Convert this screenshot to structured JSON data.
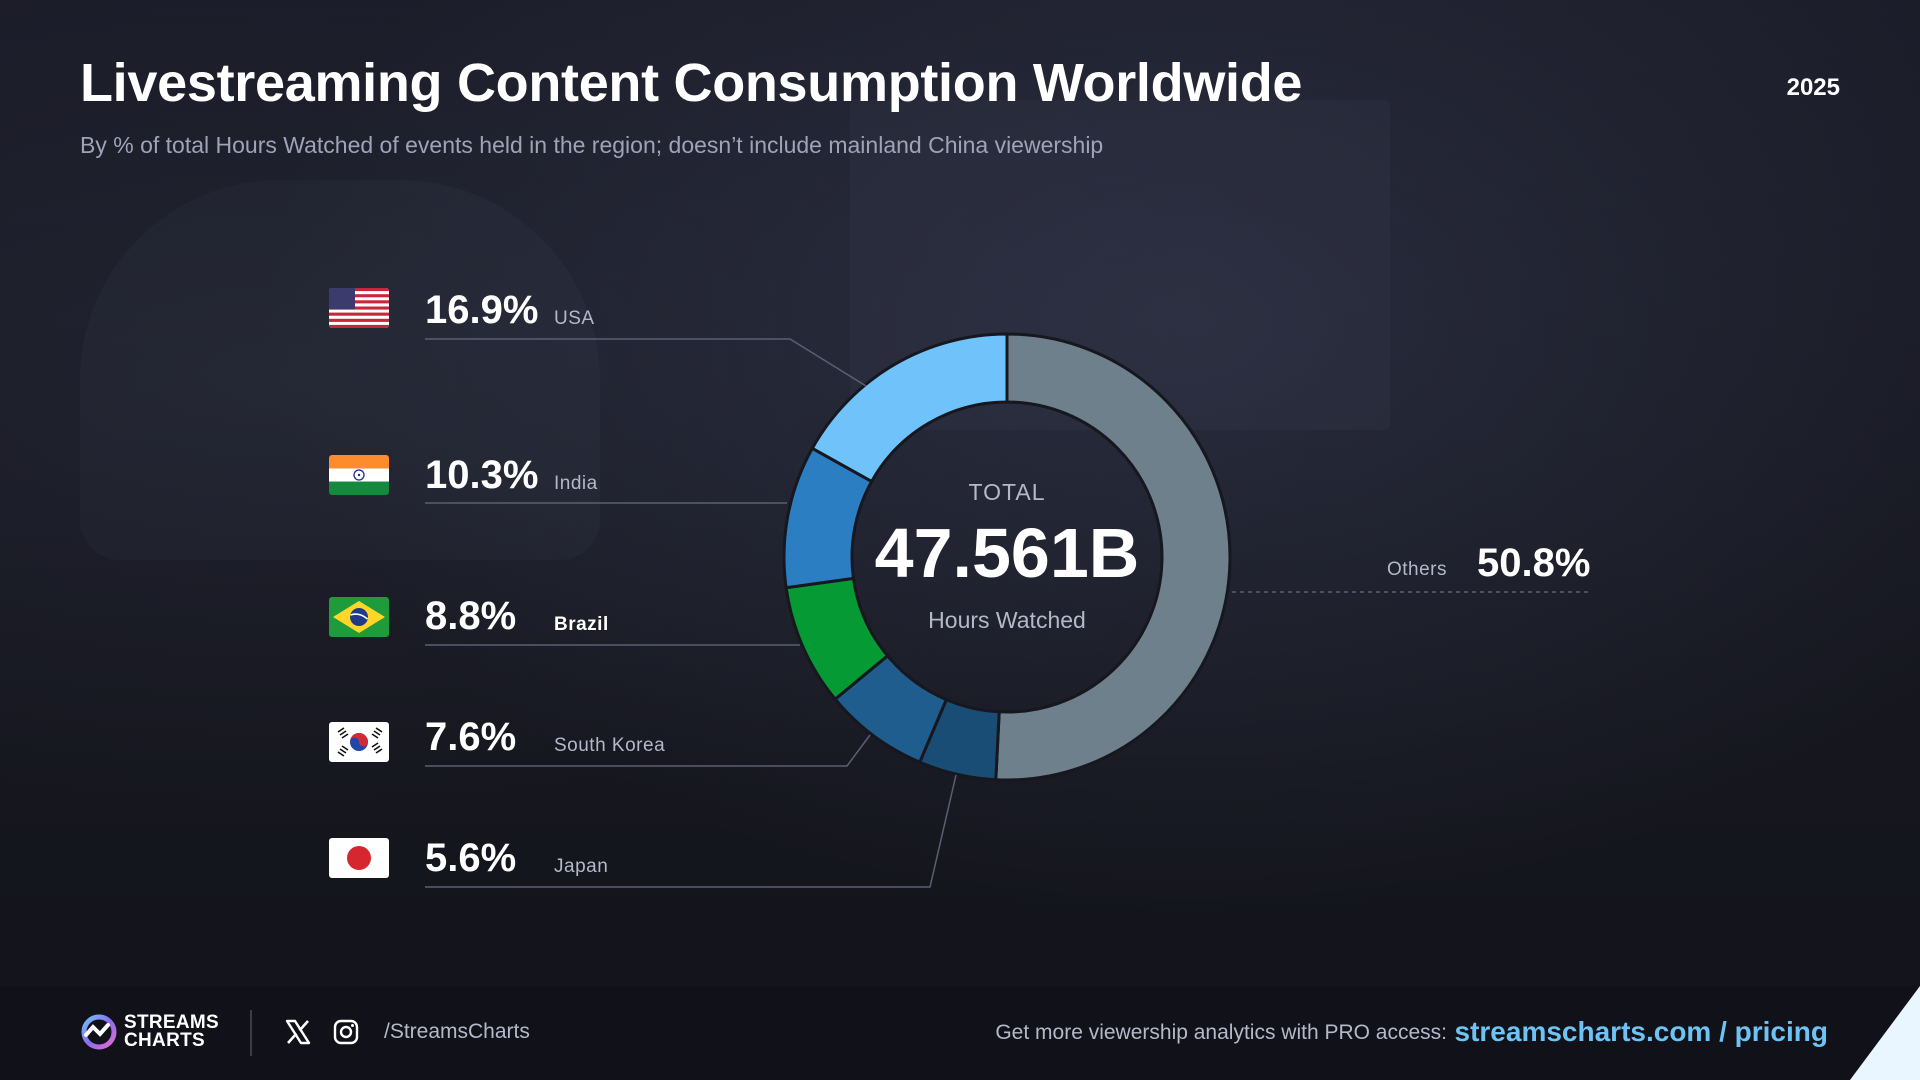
{
  "header": {
    "title": "Livestreaming Content Consumption Worldwide",
    "subtitle": "By % of total Hours Watched of events held in the region; doesn’t include mainland China viewership",
    "year": "2025"
  },
  "chart_data": {
    "type": "pie",
    "title": "Livestreaming Content Consumption Worldwide",
    "subtitle": "By % of total Hours Watched of events held in the region; doesn’t include mainland China viewership",
    "categories": [
      "USA",
      "India",
      "Brazil",
      "South Korea",
      "Japan",
      "Others"
    ],
    "values": [
      16.9,
      10.3,
      8.8,
      7.6,
      5.6,
      50.8
    ],
    "value_labels": [
      "16.9%",
      "10.3%",
      "8.8%",
      "7.6%",
      "5.6%",
      "50.8%"
    ],
    "colors": [
      "#70c2fb",
      "#2b7ec1",
      "#069a35",
      "#1e5d8d",
      "#194d76",
      "#6e808b"
    ],
    "donut": true,
    "center": {
      "total_label": "TOTAL",
      "value": "47.561B",
      "unit": "Hours Watched"
    },
    "legend_others_label": "Others"
  },
  "countries": [
    {
      "name": "USA",
      "pct": "16.9%",
      "flag": "usa-flag-icon"
    },
    {
      "name": "India",
      "pct": "10.3%",
      "flag": "india-flag-icon"
    },
    {
      "name": "Brazil",
      "pct": "8.8%",
      "flag": "brazil-flag-icon"
    },
    {
      "name": "South Korea",
      "pct": "7.6%",
      "flag": "south-korea-flag-icon"
    },
    {
      "name": "Japan",
      "pct": "5.6%",
      "flag": "japan-flag-icon"
    }
  ],
  "others": {
    "label": "Others",
    "pct": "50.8%"
  },
  "footer": {
    "logo_line1": "STREAMS",
    "logo_line2": "CHARTS",
    "handle": "/StreamsCharts",
    "promo": "Get more viewership analytics with PRO access:",
    "link": "streamscharts.com / pricing",
    "accent": "#6ec3f5"
  }
}
